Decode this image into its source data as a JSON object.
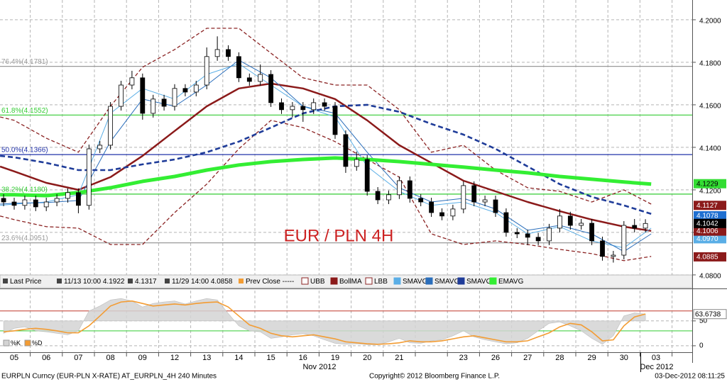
{
  "chart_data": {
    "type": "candlestick",
    "annotation": "EUR / PLN 4H",
    "categories": [
      "05",
      "06",
      "07",
      "08",
      "09",
      "12",
      "13",
      "14",
      "15",
      "16",
      "19",
      "20",
      "21",
      null,
      "23",
      "26",
      "27",
      "28",
      "29",
      "30",
      "03"
    ],
    "x_sublabels": [
      "Nov 2012",
      "Dec 2012"
    ],
    "xlim": [
      -0.4425,
      21.128
    ],
    "ylim": [
      4.0733,
      4.2093
    ],
    "yticks": [
      {
        "value": 4.08,
        "label": "4.0800"
      },
      {
        "value": 4.1,
        "label": "4.1000"
      },
      {
        "value": 4.12,
        "label": "4.1200"
      },
      {
        "value": 4.14,
        "label": "4.1400"
      },
      {
        "value": 4.16,
        "label": "4.1600"
      },
      {
        "value": 4.18,
        "label": "4.1800"
      },
      {
        "value": 4.2,
        "label": "4.2000"
      }
    ],
    "grid": true,
    "candles": {
      "up_color": "#ffffff",
      "down_color": "#000000",
      "x": [
        -0.33,
        0,
        0.33,
        0.67,
        1,
        1.33,
        1.67,
        2,
        2.33,
        2.67,
        3,
        3.33,
        3.67,
        4,
        4.33,
        4.67,
        5,
        5.33,
        5.67,
        6,
        6.33,
        6.67,
        7,
        7.33,
        7.67,
        8,
        8.33,
        8.67,
        9,
        9.33,
        9.67,
        10,
        10.33,
        10.67,
        11,
        11.33,
        11.67,
        12,
        12.33,
        12.67,
        13,
        13.33,
        13.67,
        14,
        14.33,
        14.67,
        15,
        15.33,
        15.67,
        16,
        16.33,
        16.67,
        17,
        17.33,
        17.67,
        18,
        18.33,
        18.67,
        19,
        19.33,
        19.67
      ],
      "open": [
        4.116,
        4.1143,
        4.1127,
        4.1153,
        4.112,
        4.1143,
        4.116,
        4.1187,
        4.1127,
        4.1393,
        4.141,
        4.1593,
        4.1693,
        4.1727,
        4.156,
        4.1627,
        4.1593,
        4.1677,
        4.166,
        4.1693,
        4.1827,
        4.186,
        4.1827,
        4.1727,
        4.171,
        4.1743,
        4.161,
        4.1577,
        4.1593,
        4.1577,
        4.161,
        4.1593,
        4.146,
        4.131,
        4.1343,
        4.1193,
        4.1153,
        4.1177,
        4.1243,
        4.116,
        4.1143,
        4.1093,
        4.1077,
        4.111,
        4.122,
        4.1143,
        4.1153,
        4.1093,
        4.1,
        4.0993,
        4.0977,
        4.096,
        4.102,
        4.1077,
        4.1033,
        4.1043,
        4.096,
        4.0887,
        4.0893,
        4.1033,
        4.102
      ],
      "high": [
        4.118,
        4.1163,
        4.1173,
        4.1173,
        4.1163,
        4.118,
        4.1207,
        4.1207,
        4.1413,
        4.143,
        4.1613,
        4.1713,
        4.176,
        4.1747,
        4.1647,
        4.1647,
        4.1697,
        4.1697,
        4.1713,
        4.187,
        4.1922,
        4.188,
        4.1847,
        4.1747,
        4.179,
        4.1763,
        4.163,
        4.1613,
        4.1613,
        4.163,
        4.163,
        4.1613,
        4.148,
        4.138,
        4.1363,
        4.1213,
        4.1197,
        4.1263,
        4.1263,
        4.118,
        4.1163,
        4.1113,
        4.113,
        4.124,
        4.124,
        4.1173,
        4.1173,
        4.1113,
        4.102,
        4.1013,
        4.0997,
        4.104,
        4.111,
        4.1097,
        4.1063,
        4.1063,
        4.098,
        4.0913,
        4.1053,
        4.1063,
        4.1062
      ],
      "low": [
        4.1123,
        4.1107,
        4.1107,
        4.11,
        4.11,
        4.1123,
        4.114,
        4.109,
        4.1107,
        4.1373,
        4.139,
        4.1573,
        4.1673,
        4.153,
        4.154,
        4.1573,
        4.1573,
        4.164,
        4.164,
        4.1673,
        4.1807,
        4.1807,
        4.1707,
        4.169,
        4.169,
        4.159,
        4.1557,
        4.154,
        4.152,
        4.1557,
        4.1573,
        4.144,
        4.128,
        4.129,
        4.1173,
        4.1133,
        4.1133,
        4.1157,
        4.114,
        4.1123,
        4.1073,
        4.1057,
        4.1057,
        4.109,
        4.1123,
        4.1123,
        4.1073,
        4.098,
        4.0973,
        4.094,
        4.094,
        4.094,
        4.1,
        4.1013,
        4.1013,
        4.094,
        4.0867,
        4.0858,
        4.0873,
        4.1,
        4.1
      ],
      "close": [
        4.1143,
        4.1127,
        4.1153,
        4.112,
        4.1143,
        4.116,
        4.1187,
        4.1127,
        4.1393,
        4.141,
        4.1593,
        4.1693,
        4.1727,
        4.156,
        4.1627,
        4.1593,
        4.1677,
        4.166,
        4.1693,
        4.1827,
        4.186,
        4.1827,
        4.1727,
        4.171,
        4.1743,
        4.161,
        4.1577,
        4.1593,
        4.1577,
        4.161,
        4.1593,
        4.146,
        4.131,
        4.1343,
        4.1193,
        4.1153,
        4.1177,
        4.1243,
        4.116,
        4.1143,
        4.1093,
        4.1077,
        4.111,
        4.122,
        4.1143,
        4.1153,
        4.1093,
        4.1,
        4.0993,
        4.0977,
        4.096,
        4.102,
        4.1077,
        4.1033,
        4.1043,
        4.096,
        4.0887,
        4.0893,
        4.1033,
        4.102,
        4.1042
      ]
    },
    "series": [
      {
        "name": "UBB",
        "color": "#8b2323",
        "dashed": true,
        "x": [
          -0.44,
          0,
          1,
          2,
          3,
          4,
          5,
          6,
          7,
          8,
          9,
          10,
          11,
          12,
          13,
          14,
          15,
          16,
          17,
          18,
          19,
          19.85
        ],
        "values": [
          4.1543,
          4.1527,
          4.1443,
          4.1377,
          4.1593,
          4.1777,
          4.186,
          4.196,
          4.196,
          4.1843,
          4.1727,
          4.1693,
          4.1693,
          4.1577,
          4.1377,
          4.141,
          4.1293,
          4.121,
          4.1193,
          4.1143,
          4.12,
          4.1133
        ]
      },
      {
        "name": "BollMA",
        "color": "#8b1a1a",
        "dashed": false,
        "x": [
          -0.44,
          0,
          1,
          2,
          3,
          4,
          5,
          6,
          7,
          8,
          9,
          10,
          11,
          12,
          13,
          14,
          15,
          16,
          17,
          18,
          19,
          19.85
        ],
        "values": [
          4.131,
          4.1287,
          4.1233,
          4.12,
          4.126,
          4.136,
          4.1477,
          4.1593,
          4.1677,
          4.17,
          4.1677,
          4.1627,
          4.1527,
          4.141,
          4.1327,
          4.1243,
          4.1193,
          4.1143,
          4.11,
          4.106,
          4.1027,
          4.1007
        ]
      },
      {
        "name": "LBB",
        "color": "#8b2323",
        "dashed": true,
        "x": [
          -0.44,
          0,
          1,
          2,
          3,
          4,
          5,
          6,
          7,
          8,
          9,
          10,
          11,
          12,
          13,
          14,
          15,
          16,
          17,
          18,
          19,
          19.85
        ],
        "values": [
          4.1077,
          4.106,
          4.1027,
          4.102,
          4.0943,
          4.0943,
          4.1093,
          4.1227,
          4.1393,
          4.1527,
          4.1493,
          4.1427,
          4.1343,
          4.126,
          4.0993,
          4.0943,
          4.096,
          4.0943,
          4.092,
          4.09,
          4.0867,
          4.0887
        ]
      },
      {
        "name": "SMAVG",
        "color": "#5aaee6",
        "dashed": false,
        "x": [
          -0.44,
          0,
          1,
          2,
          3,
          4,
          5,
          6,
          7,
          8,
          9,
          10,
          11,
          12,
          13,
          14,
          15,
          16,
          17,
          18,
          19,
          19.85
        ],
        "values": [
          4.1127,
          4.1133,
          4.1143,
          4.1177,
          4.156,
          4.1677,
          4.1627,
          4.1743,
          4.1793,
          4.1693,
          4.1593,
          4.1543,
          4.131,
          4.1193,
          4.1127,
          4.1143,
          4.1093,
          4.0993,
          4.1027,
          4.096,
          4.0927,
          4.102
        ]
      },
      {
        "name": "SMAVG",
        "color": "#2a6ebb",
        "dashed": false,
        "x": [
          -0.44,
          0,
          1,
          2,
          3,
          4,
          5,
          6,
          7,
          8,
          9,
          10,
          11,
          12,
          13,
          14,
          15,
          16,
          17,
          18,
          19,
          19.85
        ],
        "values": [
          4.1133,
          4.1137,
          4.114,
          4.115,
          4.1427,
          4.1627,
          4.1593,
          4.1693,
          4.181,
          4.1727,
          4.1593,
          4.156,
          4.1377,
          4.121,
          4.1143,
          4.116,
          4.111,
          4.101,
          4.1033,
          4.0993,
          4.091,
          4.0993
        ]
      },
      {
        "name": "SMAVG",
        "color": "#1f3c99",
        "dashed": true,
        "x": [
          -0.44,
          0,
          1,
          2,
          3,
          4,
          5,
          6,
          7,
          8,
          9,
          10,
          11,
          12,
          13,
          14,
          15,
          16,
          17,
          18,
          19,
          19.85
        ],
        "values": [
          4.136,
          4.1353,
          4.1327,
          4.1293,
          4.1293,
          4.132,
          4.1343,
          4.1377,
          4.1427,
          4.1493,
          4.156,
          4.1593,
          4.16,
          4.1567,
          4.151,
          4.146,
          4.1393,
          4.131,
          4.1227,
          4.1167,
          4.1127,
          4.1087
        ]
      },
      {
        "name": "EMAVG",
        "color": "#33ee33",
        "dashed": false,
        "x": [
          -0.44,
          0,
          1,
          2,
          3,
          4,
          5,
          6,
          7,
          8,
          9,
          10,
          11,
          12,
          13,
          14,
          15,
          16,
          17,
          18,
          19,
          19.85
        ],
        "values": [
          4.1177,
          4.1177,
          4.1173,
          4.1187,
          4.121,
          4.124,
          4.1263,
          4.1293,
          4.1317,
          4.1333,
          4.1343,
          4.135,
          4.1343,
          4.1333,
          4.132,
          4.1307,
          4.1293,
          4.128,
          4.1263,
          4.125,
          4.1237,
          4.1227
        ]
      }
    ],
    "levels": [
      {
        "label": "76.4%(4.1781)",
        "value": 4.1781,
        "color": "#9a9a9a"
      },
      {
        "label": "61.8%(4.1552)",
        "value": 4.1552,
        "color": "#33cc33"
      },
      {
        "label": "50.0%(4.1366)",
        "value": 4.1366,
        "color": "#2233aa"
      },
      {
        "label": "38.2%(4.1180)",
        "value": 4.118,
        "color": "#33cc33"
      },
      {
        "label": "23.6%(4.0951)",
        "value": 4.0951,
        "color": "#9a9a9a"
      }
    ],
    "price_tags": [
      {
        "value": 4.1229,
        "label": "4.1229",
        "color": "#33dd33",
        "text_color": "#000000"
      },
      {
        "value": 4.1127,
        "label": "4.1127",
        "color": "#8b1a1a",
        "text_color": "#ffffff"
      },
      {
        "value": 4.097,
        "label": "4.0970",
        "color": "#5aaee6",
        "text_color": "#ffffff"
      },
      {
        "value": 4.1006,
        "label": "4.1006",
        "color": "#8b1a1a",
        "text_color": "#ffffff"
      },
      {
        "value": 4.1078,
        "label": "4.1078",
        "color": "#1f6fd0",
        "text_color": "#ffffff"
      },
      {
        "value": 4.1042,
        "label": "4.1042",
        "color": "#000000",
        "text_color": "#ffffff"
      },
      {
        "value": 4.0885,
        "label": "4.0885",
        "color": "#8b1a1a",
        "text_color": "#ffffff"
      }
    ],
    "legend_extra": [
      "Last Price",
      "11/13 10:00 4.1922",
      "4.1317",
      "11/29 14:00 4.0858",
      "Prev Close -----"
    ],
    "oscillator": {
      "ylim": [
        -13,
        111
      ],
      "yticks": [
        0,
        50
      ],
      "levels": [
        {
          "value": 70,
          "color": "#c0392b"
        },
        {
          "value": 30,
          "color": "#33cc33"
        }
      ],
      "series": [
        {
          "name": "%K",
          "color": "#d3d3d3",
          "values": [
            25,
            35,
            38,
            30,
            28,
            25,
            22,
            30,
            70,
            80,
            92,
            95,
            90,
            78,
            85,
            88,
            90,
            84,
            90,
            95,
            92,
            65,
            40,
            30,
            28,
            15,
            18,
            22,
            24,
            20,
            12,
            5,
            3,
            4,
            2,
            2,
            8,
            15,
            6,
            5,
            10,
            12,
            20,
            30,
            18,
            12,
            8,
            4,
            6,
            15,
            30,
            45,
            48,
            40,
            30,
            15,
            3,
            20,
            60,
            66,
            63.6738
          ]
        },
        {
          "name": "%D",
          "color": "#f39c33",
          "values": [
            28,
            30,
            33,
            35,
            33,
            30,
            26,
            26,
            40,
            60,
            80,
            88,
            90,
            85,
            80,
            82,
            84,
            82,
            85,
            87,
            88,
            78,
            60,
            42,
            35,
            25,
            20,
            18,
            20,
            22,
            18,
            14,
            8,
            6,
            4,
            3,
            4,
            6,
            10,
            8,
            8,
            10,
            14,
            18,
            20,
            16,
            12,
            8,
            8,
            10,
            18,
            26,
            38,
            45,
            42,
            28,
            10,
            12,
            40,
            58,
            64
          ]
        }
      ]
    },
    "footer": {
      "left": "EURPLN Curncy (EUR-PLN X-RATE) AT_EURPLN_4H  240 Minutes",
      "center": "Copyright© 2012 Bloomberg Finance L.P.",
      "right": "03-Dec-2012 08:11:25"
    }
  }
}
